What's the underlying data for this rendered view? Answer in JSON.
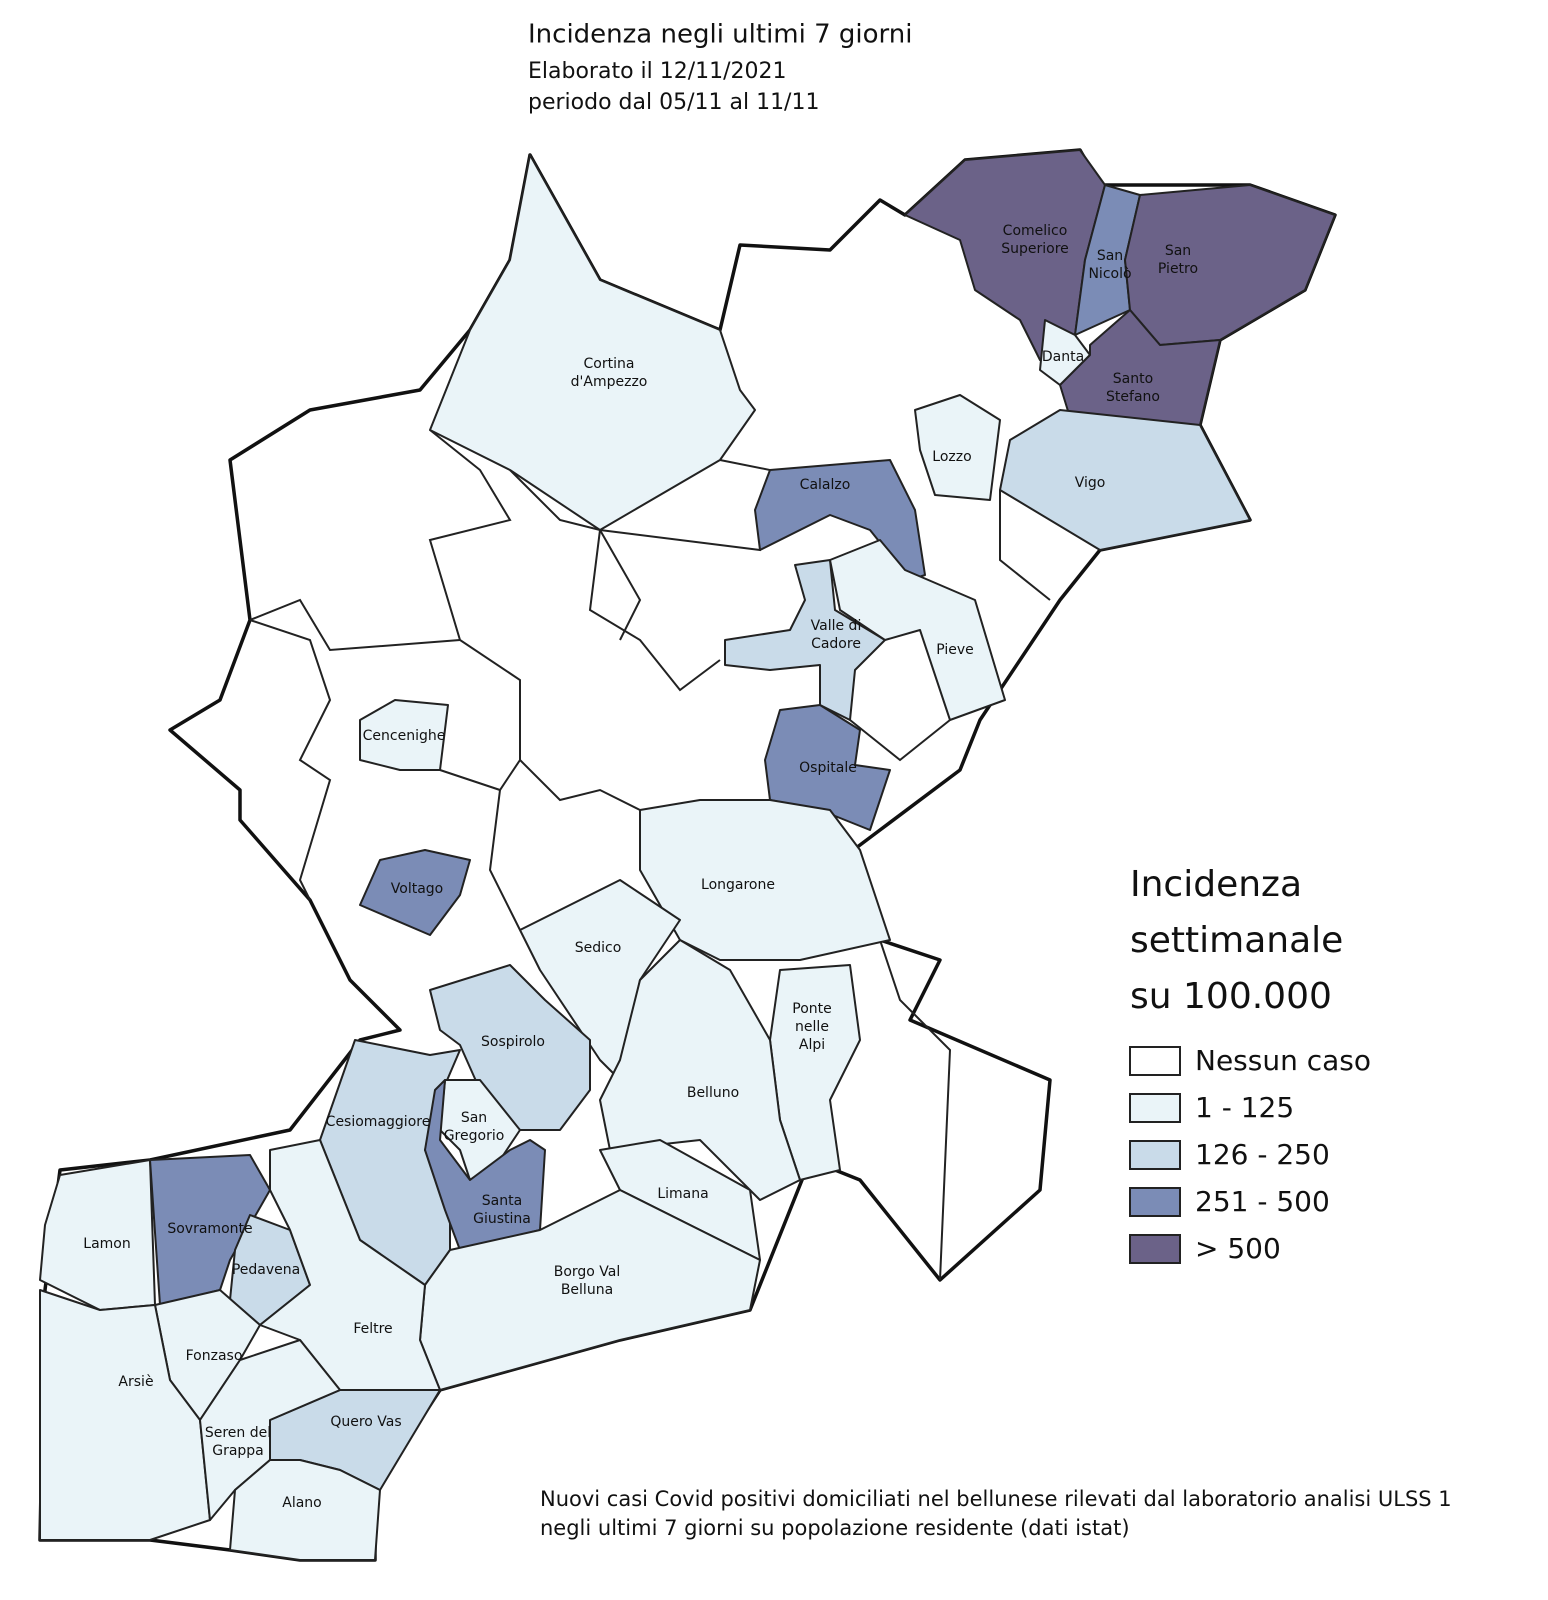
{
  "title": "Incidenza negli ultimi 7 giorni",
  "subtitle": [
    "Elaborato il 12/11/2021",
    "periodo dal 05/11 al 11/11"
  ],
  "legend": {
    "title": [
      "Incidenza",
      "settimanale",
      "su 100.000"
    ],
    "items": [
      {
        "label": "Nessun caso",
        "color": "#ffffff"
      },
      {
        "label": "1 - 125",
        "color": "#eaf4f8"
      },
      {
        "label": "126 - 250",
        "color": "#c9dbe9"
      },
      {
        "label": "251 - 500",
        "color": "#7b8cb6"
      },
      {
        "label": "> 500",
        "color": "#6b6288"
      }
    ]
  },
  "municipalities": [
    {
      "name": [
        "Comelico",
        "Superiore"
      ],
      "color": "#6b6288"
    },
    {
      "name": [
        "San",
        "Nicolò"
      ],
      "color": "#7b8cb6"
    },
    {
      "name": [
        "San",
        "Pietro"
      ],
      "color": "#6b6288"
    },
    {
      "name": [
        "Danta"
      ],
      "color": "#eaf4f8"
    },
    {
      "name": [
        "Santo",
        "Stefano"
      ],
      "color": "#6b6288"
    },
    {
      "name": [
        "Cortina",
        "d'Ampezzo"
      ],
      "color": "#eaf4f8"
    },
    {
      "name": [
        "Lozzo"
      ],
      "color": "#eaf4f8"
    },
    {
      "name": [
        "Vigo"
      ],
      "color": "#c9dbe9"
    },
    {
      "name": [
        "Calalzo"
      ],
      "color": "#7b8cb6"
    },
    {
      "name": [
        "Valle di",
        "Cadore"
      ],
      "color": "#c9dbe9"
    },
    {
      "name": [
        "Pieve"
      ],
      "color": "#eaf4f8"
    },
    {
      "name": [
        "Cencenighe"
      ],
      "color": "#eaf4f8"
    },
    {
      "name": [
        "Ospitale"
      ],
      "color": "#7b8cb6"
    },
    {
      "name": [
        "Voltago"
      ],
      "color": "#7b8cb6"
    },
    {
      "name": [
        "Longarone"
      ],
      "color": "#eaf4f8"
    },
    {
      "name": [
        "Sedico"
      ],
      "color": "#eaf4f8"
    },
    {
      "name": [
        "Sospirolo"
      ],
      "color": "#c9dbe9"
    },
    {
      "name": [
        "Ponte",
        "nelle",
        "Alpi"
      ],
      "color": "#eaf4f8"
    },
    {
      "name": [
        "Belluno"
      ],
      "color": "#eaf4f8"
    },
    {
      "name": [
        "Cesiomaggiore"
      ],
      "color": "#c9dbe9"
    },
    {
      "name": [
        "San",
        "Gregorio"
      ],
      "color": "#eaf4f8"
    },
    {
      "name": [
        "Santa",
        "Giustina"
      ],
      "color": "#7b8cb6"
    },
    {
      "name": [
        "Limana"
      ],
      "color": "#eaf4f8"
    },
    {
      "name": [
        "Lamon"
      ],
      "color": "#eaf4f8"
    },
    {
      "name": [
        "Sovramonte"
      ],
      "color": "#7b8cb6"
    },
    {
      "name": [
        "Pedavena"
      ],
      "color": "#c9dbe9"
    },
    {
      "name": [
        "Borgo Val",
        "Belluna"
      ],
      "color": "#eaf4f8"
    },
    {
      "name": [
        "Feltre"
      ],
      "color": "#eaf4f8"
    },
    {
      "name": [
        "Fonzaso"
      ],
      "color": "#eaf4f8"
    },
    {
      "name": [
        "Arsiè"
      ],
      "color": "#eaf4f8"
    },
    {
      "name": [
        "Quero Vas"
      ],
      "color": "#c9dbe9"
    },
    {
      "name": [
        "Seren del",
        "Grappa"
      ],
      "color": "#eaf4f8"
    },
    {
      "name": [
        "Alano"
      ],
      "color": "#eaf4f8"
    }
  ],
  "footnote": [
    "Nuovi casi Covid positivi domiciliati nel bellunese rilevati dal laboratorio analisi ULSS 1",
    "negli ultimi 7 giorni su popolazione residente (dati istat)"
  ]
}
